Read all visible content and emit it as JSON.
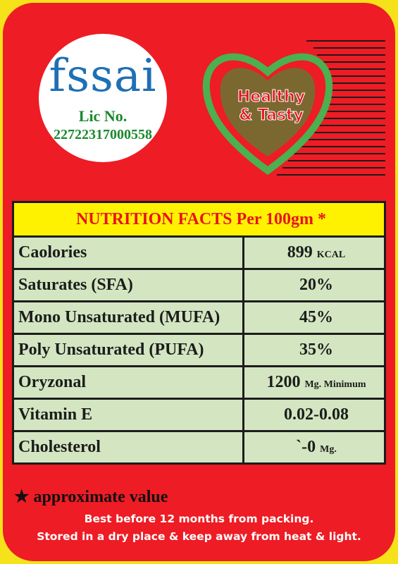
{
  "logo": {
    "text": "fssai",
    "license_label": "Lic No.",
    "license_number": "22722317000558"
  },
  "badge": {
    "line1": "Healthy",
    "line2": "& Tasty"
  },
  "table": {
    "header": "NUTRITION FACTS Per 100gm *",
    "rows": [
      {
        "label": "Caolories",
        "value": "899",
        "unit": "KCAL"
      },
      {
        "label": "Saturates (SFA)",
        "value": "20%"
      },
      {
        "label": "Mono Unsaturated (MUFA)",
        "value": "45%"
      },
      {
        "label": "Poly Unsaturated (PUFA)",
        "value": "35%"
      },
      {
        "label": "Oryzonal",
        "value": "1200",
        "unit": "Mg. Minimum"
      },
      {
        "label": "Vitamin E",
        "value": "0.02-0.08"
      },
      {
        "label": "Cholesterol",
        "value": "`-0",
        "unit": "Mg."
      }
    ]
  },
  "footer": {
    "note": "★ approximate value",
    "line1": "Best before 12 months from packing.",
    "line2": "Stored in a dry place & keep away from heat & light."
  }
}
